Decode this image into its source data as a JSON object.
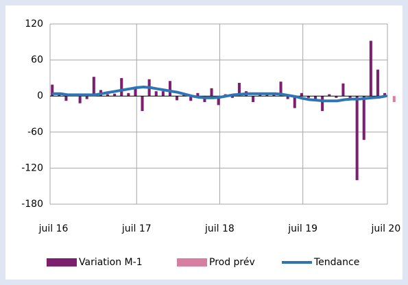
{
  "chart_data": {
    "type": "bar",
    "categories": [
      "juil 16",
      null,
      null,
      null,
      null,
      null,
      null,
      null,
      null,
      null,
      null,
      null,
      "juil 17",
      null,
      null,
      null,
      null,
      null,
      null,
      null,
      null,
      null,
      null,
      null,
      "juil 18",
      null,
      null,
      null,
      null,
      null,
      null,
      null,
      null,
      null,
      null,
      null,
      "juil 19",
      null,
      null,
      null,
      null,
      null,
      null,
      null,
      null,
      null,
      null,
      null,
      "juil 20",
      null
    ],
    "series": [
      {
        "name": "Variation M-1",
        "type": "bar",
        "color": "#7b1f6e",
        "values": [
          19,
          3,
          -8,
          3,
          -12,
          -5,
          32,
          10,
          3,
          4,
          30,
          5,
          15,
          -25,
          28,
          8,
          8,
          25,
          -7,
          2,
          -8,
          5,
          -10,
          13,
          -15,
          3,
          -3,
          22,
          8,
          -10,
          3,
          5,
          5,
          24,
          -5,
          -20,
          5,
          -3,
          -8,
          -25,
          3,
          -3,
          21,
          -3,
          -140,
          -73,
          92,
          44,
          5,
          null
        ]
      },
      {
        "name": "Prod prév",
        "type": "bar",
        "color": "#d67fa3",
        "values": [
          null,
          null,
          null,
          null,
          null,
          null,
          null,
          null,
          null,
          null,
          null,
          null,
          null,
          null,
          null,
          null,
          null,
          null,
          null,
          null,
          null,
          null,
          null,
          null,
          null,
          null,
          null,
          null,
          null,
          null,
          null,
          null,
          null,
          null,
          null,
          null,
          null,
          null,
          null,
          null,
          null,
          null,
          null,
          null,
          null,
          null,
          null,
          null,
          null,
          -10
        ]
      },
      {
        "name": "Tendance",
        "type": "line",
        "color": "#2e75b6",
        "values": [
          4,
          4,
          2,
          2,
          2,
          2,
          2,
          4,
          6,
          8,
          10,
          12,
          14,
          15,
          14,
          12,
          10,
          8,
          6,
          3,
          0,
          -2,
          -3,
          -3,
          -2,
          0,
          2,
          3,
          4,
          4,
          4,
          4,
          4,
          3,
          1,
          -1,
          -4,
          -6,
          -7,
          -8,
          -8,
          -8,
          -6,
          -5,
          -5,
          -4,
          -3,
          -2,
          0,
          null
        ]
      }
    ],
    "ylim": [
      -180,
      120
    ],
    "yticks": [
      120,
      60,
      0,
      -60,
      -120,
      -180
    ],
    "grid": true,
    "legend": "bottom"
  }
}
